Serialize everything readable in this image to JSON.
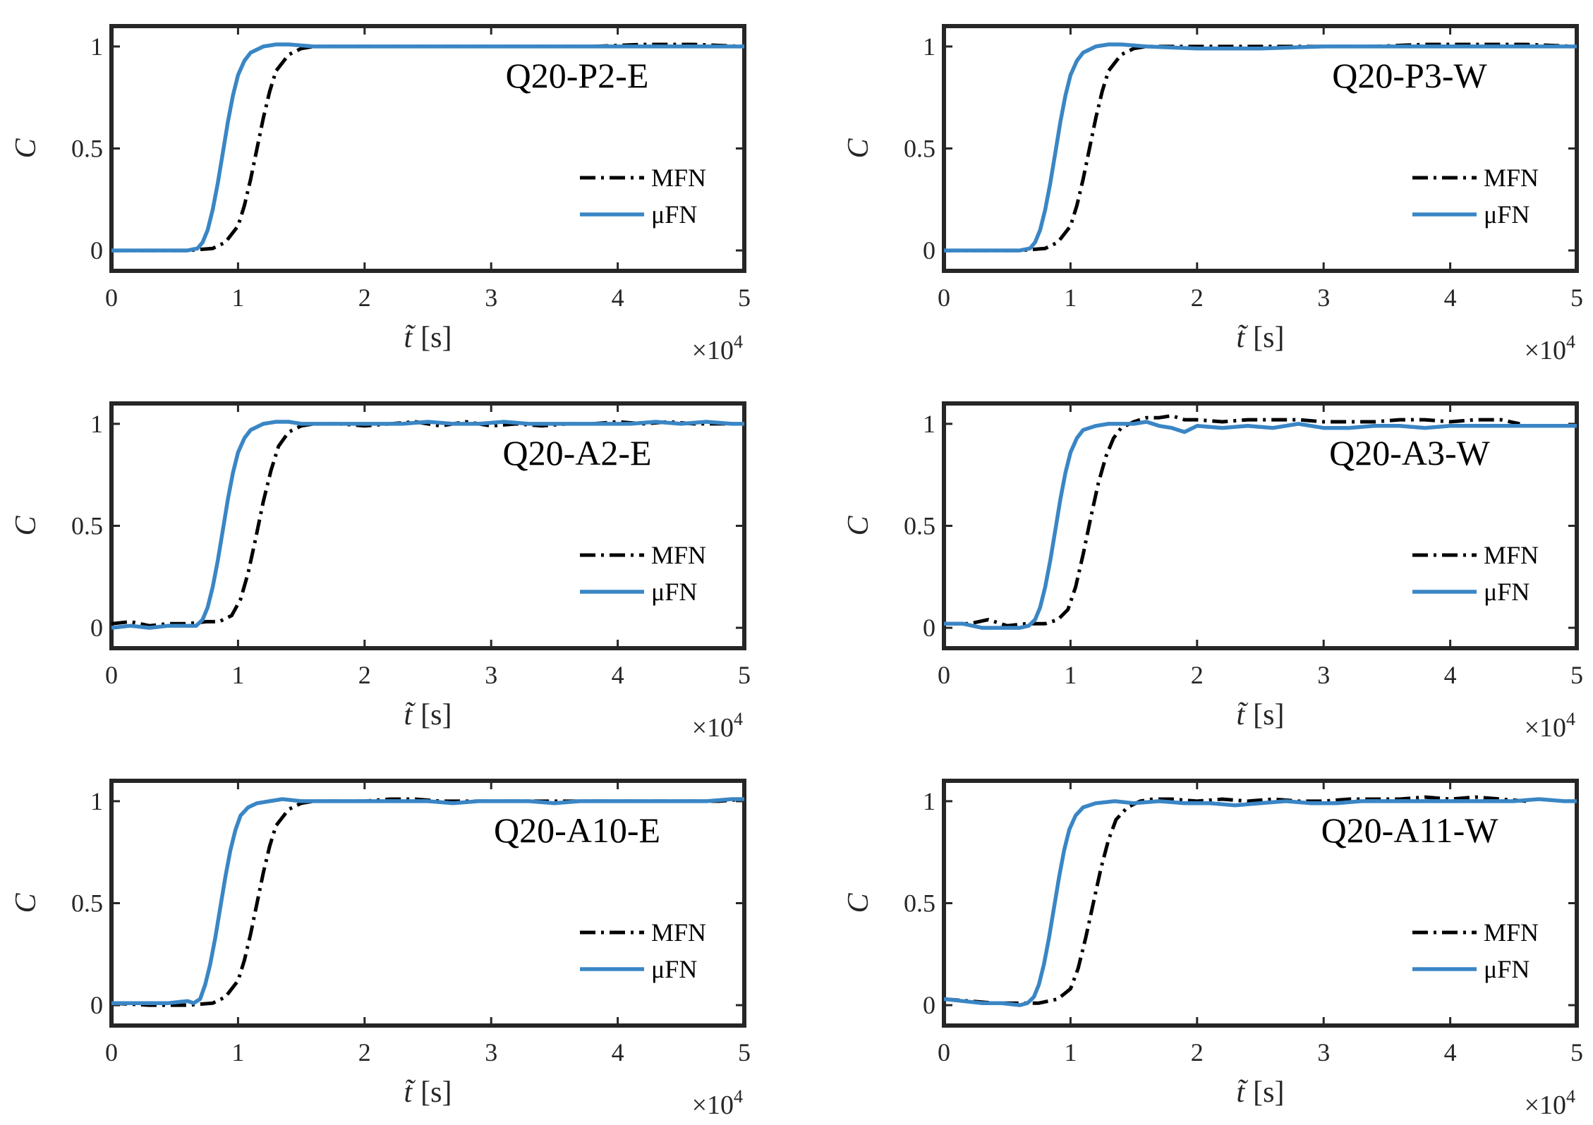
{
  "figure": {
    "legend_labels": [
      "MFN",
      "μFN"
    ],
    "series_colors": {
      "MFN": "#000000",
      "μFN": "#3a86c5"
    }
  },
  "chart_data": [
    {
      "type": "line",
      "title": "Q20-P2-E",
      "xlabel": "t̃",
      "xlabel_unit": "[s]",
      "ylabel": "C",
      "xlim": [
        0,
        50000
      ],
      "ylim": [
        -0.1,
        1.1
      ],
      "xticks": [
        0,
        1,
        2,
        3,
        4,
        5
      ],
      "yticks": [
        0,
        0.5,
        1
      ],
      "xtick_labels": [
        "0",
        "1",
        "2",
        "3",
        "4",
        "5"
      ],
      "ytick_labels": [
        "0",
        "0.5",
        "1"
      ],
      "x_multiplier_base": "×10",
      "x_multiplier_exp": "4",
      "legend_position": "lower-right",
      "series": [
        {
          "name": "MFN",
          "x": [
            0,
            3000,
            6000,
            8000,
            9000,
            10000,
            10500,
            11000,
            11500,
            12000,
            12500,
            13000,
            14000,
            15000,
            16000,
            18000,
            22000,
            26000,
            30000,
            34000,
            38000,
            42000,
            46000,
            50000
          ],
          "y": [
            0.0,
            0.0,
            0.0,
            0.01,
            0.04,
            0.12,
            0.22,
            0.35,
            0.5,
            0.65,
            0.78,
            0.88,
            0.96,
            0.99,
            1.0,
            1.0,
            1.0,
            1.0,
            1.0,
            1.0,
            1.0,
            1.01,
            1.01,
            1.0
          ]
        },
        {
          "name": "μFN",
          "x": [
            0,
            3000,
            6000,
            6800,
            7200,
            7600,
            8000,
            8400,
            8800,
            9200,
            9600,
            10000,
            10500,
            11000,
            12000,
            13000,
            14000,
            16000,
            20000,
            25000,
            30000,
            35000,
            40000,
            45000,
            50000
          ],
          "y": [
            0.0,
            0.0,
            0.0,
            0.01,
            0.04,
            0.1,
            0.2,
            0.33,
            0.48,
            0.63,
            0.76,
            0.86,
            0.93,
            0.97,
            1.0,
            1.01,
            1.01,
            1.0,
            1.0,
            1.0,
            1.0,
            1.0,
            1.0,
            1.0,
            1.0
          ]
        }
      ]
    },
    {
      "type": "line",
      "title": "Q20-P3-W",
      "xlabel": "t̃",
      "xlabel_unit": "[s]",
      "ylabel": "C",
      "xlim": [
        0,
        50000
      ],
      "ylim": [
        -0.1,
        1.1
      ],
      "xticks": [
        0,
        1,
        2,
        3,
        4,
        5
      ],
      "yticks": [
        0,
        0.5,
        1
      ],
      "xtick_labels": [
        "0",
        "1",
        "2",
        "3",
        "4",
        "5"
      ],
      "ytick_labels": [
        "0",
        "0.5",
        "1"
      ],
      "x_multiplier_base": "×10",
      "x_multiplier_exp": "4",
      "legend_position": "lower-right",
      "series": [
        {
          "name": "MFN",
          "x": [
            0,
            3000,
            6000,
            8000,
            9000,
            10000,
            10500,
            11000,
            11500,
            12000,
            12500,
            13000,
            14000,
            15000,
            16000,
            18000,
            22000,
            26000,
            30000,
            34000,
            38000,
            42000,
            46000,
            50000
          ],
          "y": [
            0.0,
            0.0,
            0.0,
            0.01,
            0.04,
            0.12,
            0.22,
            0.35,
            0.5,
            0.65,
            0.78,
            0.88,
            0.96,
            0.99,
            1.0,
            1.0,
            1.0,
            1.0,
            1.0,
            1.0,
            1.01,
            1.01,
            1.01,
            1.0
          ]
        },
        {
          "name": "μFN",
          "x": [
            0,
            3000,
            6000,
            6800,
            7200,
            7600,
            8000,
            8400,
            8800,
            9200,
            9600,
            10000,
            10500,
            11000,
            12000,
            13000,
            14000,
            16000,
            20000,
            25000,
            30000,
            35000,
            40000,
            45000,
            50000
          ],
          "y": [
            0.0,
            0.0,
            0.0,
            0.01,
            0.04,
            0.1,
            0.2,
            0.33,
            0.48,
            0.63,
            0.76,
            0.86,
            0.93,
            0.97,
            1.0,
            1.01,
            1.01,
            1.0,
            0.99,
            0.99,
            1.0,
            1.0,
            1.0,
            1.0,
            1.0
          ]
        }
      ]
    },
    {
      "type": "line",
      "title": "Q20-A2-E",
      "xlabel": "t̃",
      "xlabel_unit": "[s]",
      "ylabel": "C",
      "xlim": [
        0,
        50000
      ],
      "ylim": [
        -0.1,
        1.1
      ],
      "xticks": [
        0,
        1,
        2,
        3,
        4,
        5
      ],
      "yticks": [
        0,
        0.5,
        1
      ],
      "xtick_labels": [
        "0",
        "1",
        "2",
        "3",
        "4",
        "5"
      ],
      "ytick_labels": [
        "0",
        "0.5",
        "1"
      ],
      "x_multiplier_base": "×10",
      "x_multiplier_exp": "4",
      "legend_position": "lower-right",
      "series": [
        {
          "name": "MFN",
          "x": [
            0,
            1500,
            3000,
            4500,
            6000,
            7500,
            8500,
            9500,
            10200,
            10800,
            11400,
            12000,
            12600,
            13200,
            14000,
            15000,
            16000,
            18000,
            20000,
            22000,
            24000,
            26000,
            28000,
            30000,
            32000,
            34000,
            36000,
            38000,
            40000,
            42000,
            44000,
            46000,
            48000,
            50000
          ],
          "y": [
            0.02,
            0.03,
            0.01,
            0.02,
            0.02,
            0.03,
            0.03,
            0.06,
            0.14,
            0.27,
            0.44,
            0.62,
            0.77,
            0.89,
            0.96,
            0.99,
            1.0,
            1.0,
            0.99,
            1.0,
            1.01,
            0.99,
            1.01,
            0.99,
            1.0,
            0.99,
            1.0,
            1.0,
            1.01,
            1.0,
            1.01,
            1.0,
            1.0,
            1.0
          ]
        },
        {
          "name": "μFN",
          "x": [
            0,
            1500,
            3000,
            4500,
            6000,
            6700,
            7200,
            7600,
            8000,
            8400,
            8800,
            9200,
            9600,
            10000,
            10500,
            11000,
            12000,
            13000,
            14000,
            15000,
            17000,
            19000,
            21000,
            23000,
            25000,
            27000,
            29000,
            31000,
            33000,
            35000,
            37000,
            39000,
            41000,
            43000,
            45000,
            47000,
            49000,
            50000
          ],
          "y": [
            0.0,
            0.01,
            0.0,
            0.01,
            0.01,
            0.01,
            0.04,
            0.1,
            0.2,
            0.33,
            0.48,
            0.63,
            0.76,
            0.86,
            0.93,
            0.97,
            1.0,
            1.01,
            1.01,
            1.0,
            1.0,
            1.0,
            1.0,
            1.0,
            1.01,
            1.0,
            1.0,
            1.01,
            1.0,
            1.0,
            1.0,
            1.0,
            1.0,
            1.01,
            1.0,
            1.01,
            1.0,
            1.0
          ]
        }
      ]
    },
    {
      "type": "line",
      "title": "Q20-A3-W",
      "xlabel": "t̃",
      "xlabel_unit": "[s]",
      "ylabel": "C",
      "xlim": [
        0,
        50000
      ],
      "ylim": [
        -0.1,
        1.1
      ],
      "xticks": [
        0,
        1,
        2,
        3,
        4,
        5
      ],
      "yticks": [
        0,
        0.5,
        1
      ],
      "xtick_labels": [
        "0",
        "1",
        "2",
        "3",
        "4",
        "5"
      ],
      "ytick_labels": [
        "0",
        "0.5",
        "1"
      ],
      "x_multiplier_base": "×10",
      "x_multiplier_exp": "4",
      "legend_position": "lower-right",
      "series": [
        {
          "name": "MFN",
          "x": [
            0,
            2000,
            3500,
            5000,
            6500,
            8000,
            9000,
            9800,
            10400,
            11000,
            11600,
            12200,
            12800,
            13400,
            14000,
            15000,
            16000,
            17000,
            18000,
            19000,
            20000,
            22000,
            24000,
            26000,
            28000,
            30000,
            32000,
            34000,
            36000,
            38000,
            40000,
            42000,
            44000,
            45500
          ],
          "y": [
            0.02,
            0.02,
            0.04,
            0.01,
            0.02,
            0.02,
            0.04,
            0.09,
            0.2,
            0.36,
            0.54,
            0.71,
            0.84,
            0.93,
            0.98,
            1.01,
            1.03,
            1.03,
            1.04,
            1.02,
            1.02,
            1.01,
            1.02,
            1.02,
            1.02,
            1.01,
            1.01,
            1.01,
            1.02,
            1.02,
            1.01,
            1.02,
            1.02,
            1.0
          ]
        },
        {
          "name": "μFN",
          "x": [
            0,
            1500,
            3000,
            4500,
            6000,
            6700,
            7200,
            7600,
            8000,
            8400,
            8800,
            9200,
            9600,
            10000,
            10500,
            11000,
            12000,
            13000,
            14000,
            15000,
            16000,
            17000,
            18000,
            19000,
            20000,
            22000,
            24000,
            26000,
            28000,
            30000,
            32000,
            34000,
            36000,
            38000,
            40000,
            42000,
            44000,
            46000,
            48000,
            50000
          ],
          "y": [
            0.02,
            0.02,
            0.0,
            0.0,
            0.0,
            0.01,
            0.04,
            0.1,
            0.2,
            0.33,
            0.48,
            0.63,
            0.76,
            0.86,
            0.93,
            0.97,
            0.99,
            1.0,
            1.0,
            1.0,
            1.01,
            0.99,
            0.98,
            0.96,
            0.99,
            0.98,
            0.99,
            0.98,
            1.0,
            0.98,
            0.98,
            0.99,
            0.99,
            0.98,
            0.99,
            0.99,
            0.99,
            0.99,
            0.99,
            0.99
          ]
        }
      ]
    },
    {
      "type": "line",
      "title": "Q20-A10-E",
      "xlabel": "t̃",
      "xlabel_unit": "[s]",
      "ylabel": "C",
      "xlim": [
        0,
        50000
      ],
      "ylim": [
        -0.1,
        1.1
      ],
      "xticks": [
        0,
        1,
        2,
        3,
        4,
        5
      ],
      "yticks": [
        0,
        0.5,
        1
      ],
      "xtick_labels": [
        "0",
        "1",
        "2",
        "3",
        "4",
        "5"
      ],
      "ytick_labels": [
        "0",
        "0.5",
        "1"
      ],
      "x_multiplier_base": "×10",
      "x_multiplier_exp": "4",
      "legend_position": "lower-right",
      "series": [
        {
          "name": "MFN",
          "x": [
            0,
            3000,
            6000,
            8000,
            9000,
            10000,
            10500,
            11000,
            11500,
            12000,
            12500,
            13000,
            14000,
            15000,
            16000,
            18000,
            20000,
            22000,
            24000,
            26000,
            28000,
            30000,
            32000,
            34000,
            36000,
            38000,
            40000,
            42000,
            44000,
            46000,
            48000,
            50000
          ],
          "y": [
            0.01,
            0.0,
            0.0,
            0.01,
            0.04,
            0.12,
            0.22,
            0.35,
            0.5,
            0.65,
            0.78,
            0.88,
            0.96,
            0.99,
            1.0,
            1.0,
            1.0,
            1.01,
            1.01,
            1.0,
            1.0,
            1.0,
            1.0,
            1.0,
            1.0,
            1.0,
            1.0,
            1.0,
            1.0,
            1.0,
            1.0,
            1.01
          ]
        },
        {
          "name": "μFN",
          "x": [
            0,
            1500,
            3000,
            4500,
            6000,
            6500,
            7000,
            7400,
            7800,
            8200,
            8600,
            9000,
            9400,
            9800,
            10200,
            10800,
            11500,
            12500,
            13500,
            15000,
            17000,
            19000,
            21000,
            23000,
            25000,
            27000,
            29000,
            31000,
            33000,
            35000,
            37000,
            39000,
            41000,
            43000,
            45000,
            47000,
            49000,
            50000
          ],
          "y": [
            0.01,
            0.01,
            0.01,
            0.01,
            0.02,
            0.01,
            0.03,
            0.1,
            0.2,
            0.33,
            0.48,
            0.63,
            0.76,
            0.86,
            0.93,
            0.97,
            0.99,
            1.0,
            1.01,
            1.0,
            1.0,
            1.0,
            1.0,
            1.0,
            1.0,
            0.99,
            1.0,
            1.0,
            1.0,
            0.99,
            1.0,
            1.0,
            1.0,
            1.0,
            1.0,
            1.0,
            1.01,
            1.01
          ]
        }
      ]
    },
    {
      "type": "line",
      "title": "Q20-A11-W",
      "xlabel": "t̃",
      "xlabel_unit": "[s]",
      "ylabel": "C",
      "xlim": [
        0,
        50000
      ],
      "ylim": [
        -0.1,
        1.1
      ],
      "xticks": [
        0,
        1,
        2,
        3,
        4,
        5
      ],
      "yticks": [
        0,
        0.5,
        1
      ],
      "xtick_labels": [
        "0",
        "1",
        "2",
        "3",
        "4",
        "5"
      ],
      "ytick_labels": [
        "0",
        "0.5",
        "1"
      ],
      "x_multiplier_base": "×10",
      "x_multiplier_exp": "4",
      "legend_position": "lower-right",
      "series": [
        {
          "name": "MFN",
          "x": [
            0,
            2000,
            4000,
            6000,
            7500,
            9000,
            10000,
            10600,
            11200,
            11800,
            12400,
            13000,
            13600,
            14500,
            15500,
            16500,
            18000,
            20000,
            22000,
            24000,
            26000,
            28000,
            30000,
            32000,
            34000,
            36000,
            38000,
            40000,
            42000,
            44000,
            46000
          ],
          "y": [
            0.03,
            0.02,
            0.01,
            0.01,
            0.01,
            0.03,
            0.08,
            0.18,
            0.33,
            0.5,
            0.67,
            0.81,
            0.91,
            0.97,
            1.0,
            1.01,
            1.01,
            1.0,
            1.01,
            1.0,
            1.01,
            1.0,
            1.0,
            1.01,
            1.01,
            1.01,
            1.02,
            1.01,
            1.02,
            1.01,
            1.0
          ]
        },
        {
          "name": "μFN",
          "x": [
            0,
            1500,
            3000,
            4500,
            6000,
            6600,
            7100,
            7500,
            7900,
            8300,
            8700,
            9100,
            9500,
            9900,
            10400,
            11000,
            12000,
            13500,
            15000,
            17000,
            19000,
            21000,
            23000,
            25000,
            27000,
            29000,
            31000,
            33000,
            35000,
            37000,
            39000,
            41000,
            43000,
            45000,
            47000,
            49000,
            50000
          ],
          "y": [
            0.03,
            0.02,
            0.01,
            0.01,
            0.0,
            0.01,
            0.04,
            0.1,
            0.2,
            0.33,
            0.48,
            0.63,
            0.76,
            0.86,
            0.93,
            0.97,
            0.99,
            1.0,
            0.99,
            1.0,
            0.99,
            0.99,
            0.98,
            0.99,
            1.0,
            0.99,
            0.99,
            1.0,
            1.0,
            1.0,
            1.0,
            1.0,
            1.0,
            1.0,
            1.01,
            1.0,
            1.0
          ]
        }
      ]
    }
  ]
}
